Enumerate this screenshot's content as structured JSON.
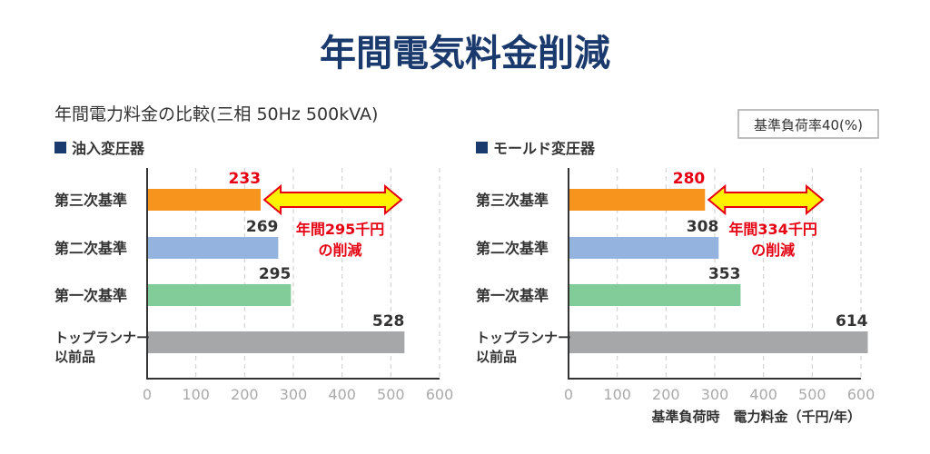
{
  "title": "年間電気料金削減",
  "subtitle": "年間電力料金の比較(三相 50Hz 500kVA)",
  "load_note": "基準負荷率40(%)",
  "xlabel": "基準負荷時　電力料金（千円/年）",
  "colors": {
    "title": "#1a3a6e",
    "legend_square": "#1a3a6e",
    "third": "#f7941d",
    "second": "#94b3de",
    "first": "#82cc9a",
    "old": "#a6a7a9",
    "savings": "#e60012",
    "arrow_fill": "#fff200"
  },
  "chart_data": [
    {
      "type": "bar",
      "title": "油入変圧器",
      "categories": [
        "第三次基準",
        "第二次基準",
        "第一次基準",
        "トップランナー以前品"
      ],
      "values": [
        233,
        269,
        295,
        528
      ],
      "xlim": [
        0,
        600
      ],
      "ticks": [
        "0",
        "100",
        "200",
        "300",
        "400",
        "500",
        "600"
      ],
      "grid": true,
      "annotation": [
        "年間295千円",
        "の削減"
      ]
    },
    {
      "type": "bar",
      "title": "モールド変圧器",
      "categories": [
        "第三次基準",
        "第二次基準",
        "第一次基準",
        "トップランナー以前品"
      ],
      "values": [
        280,
        308,
        353,
        614
      ],
      "xlim": [
        0,
        600
      ],
      "ticks": [
        "0",
        "100",
        "200",
        "300",
        "400",
        "500",
        "600"
      ],
      "grid": true,
      "annotation": [
        "年間334千円",
        "の削減"
      ]
    }
  ]
}
